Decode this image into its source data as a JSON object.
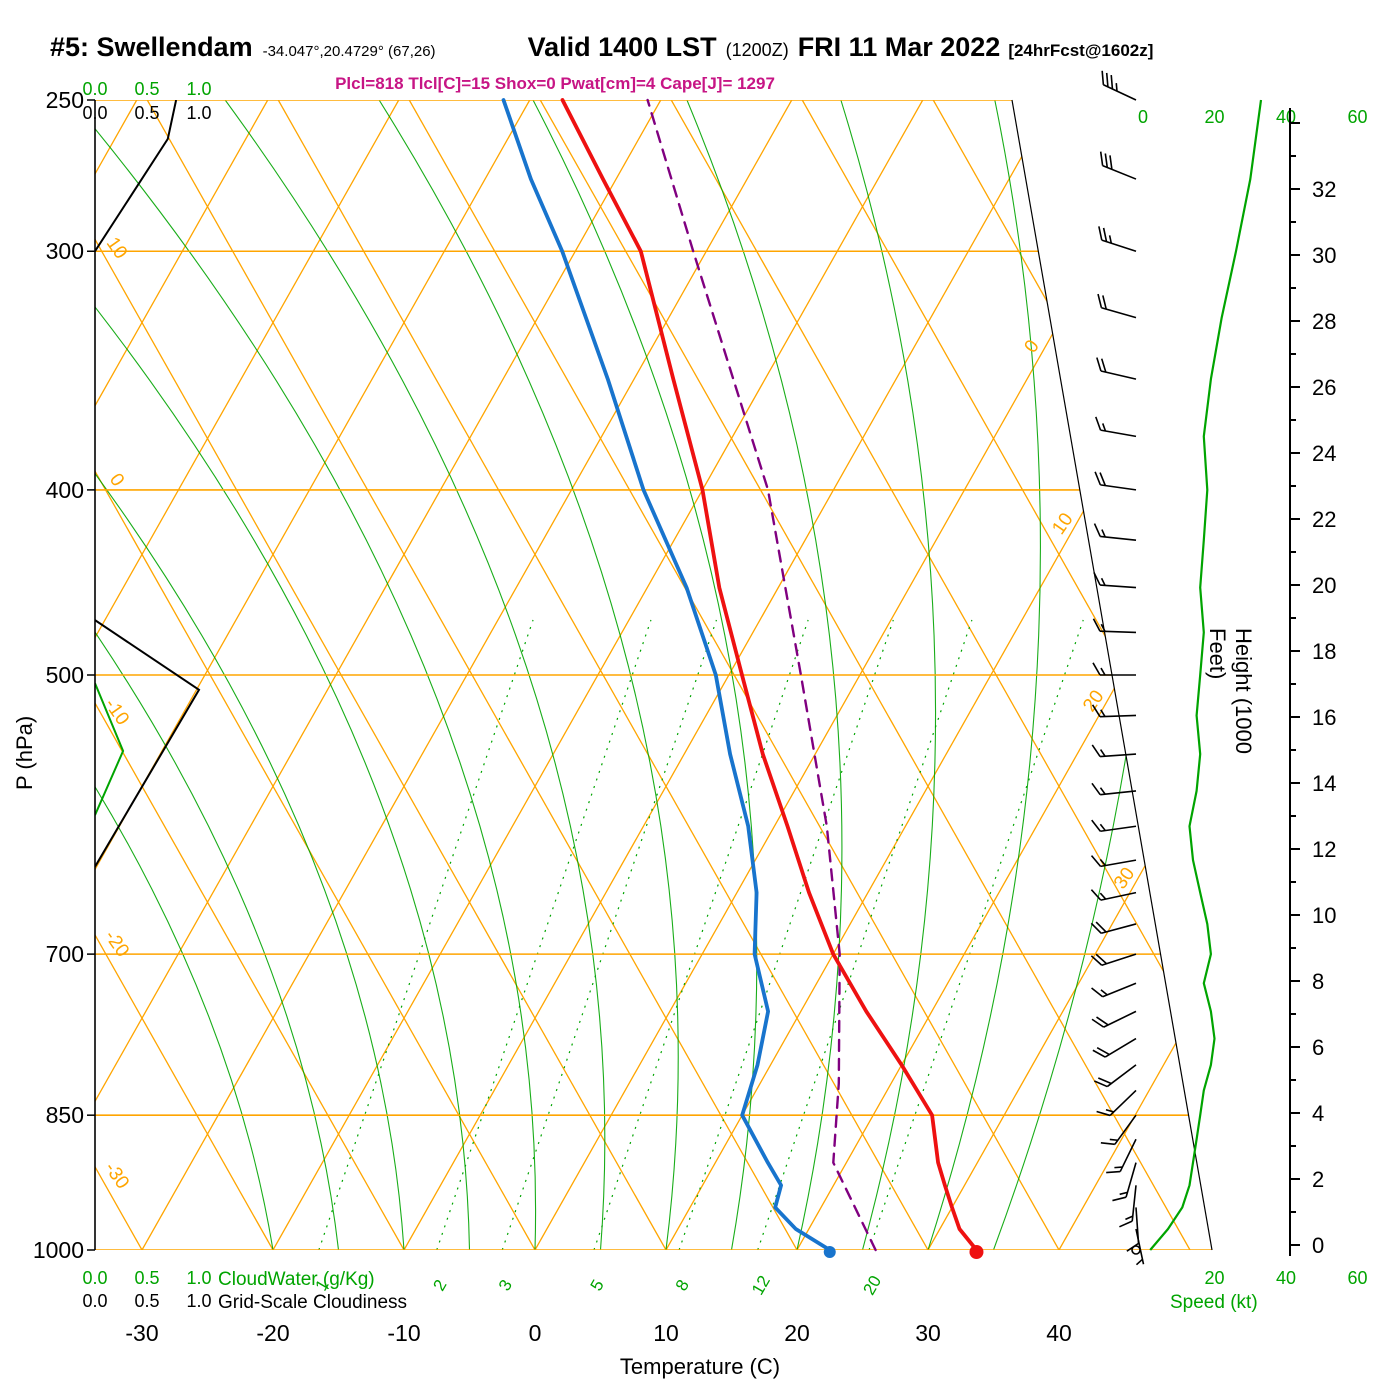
{
  "title": {
    "station": "#5: Swellendam",
    "coords": "-34.047°,20.4729° (67,26)",
    "valid": "Valid 1400 LST",
    "valid_z": "(1200Z)",
    "valid_date": "FRI 11 Mar 2022",
    "fcst": "[24hrFcst@1602z]"
  },
  "indices": {
    "text": "Plcl=818 Tlcl[C]=15 Shox=0 Pwat[cm]=4 Cape[J]= 1297",
    "plcl_hpa": 818,
    "tlcl_c": 15,
    "showalter": 0,
    "pwat_cm": 4,
    "cape_j": 1297
  },
  "axes": {
    "pressure_label": "P (hPa)",
    "pressure_ticks": [
      250,
      300,
      400,
      500,
      700,
      850,
      1000
    ],
    "temp_label": "Temperature (C)",
    "temp_ticks": [
      -30,
      -20,
      -10,
      0,
      10,
      20,
      30,
      40
    ],
    "height_label": "Height (1000 Feet)",
    "height_ticks": [
      0,
      2,
      4,
      6,
      8,
      10,
      12,
      14,
      16,
      18,
      20,
      22,
      24,
      26,
      28,
      30,
      32
    ],
    "cloudwater_label": "CloudWater (g/Kg)",
    "cloudiness_label": "Grid-Scale Cloudiness",
    "cloud_scale_ticks": [
      "0.0",
      "0.5",
      "1.0"
    ],
    "speed_label": "Speed (kt)",
    "speed_ticks_top": [
      0,
      20,
      40,
      60
    ],
    "speed_ticks_bottom": [
      20,
      40,
      60
    ]
  },
  "colors": {
    "grid_orange": "#FFA500",
    "green": "#00A400",
    "red": "#EE1111",
    "blue": "#1874CD",
    "purple": "#800080",
    "magenta": "#C71585",
    "black": "#000000"
  },
  "chart_data": {
    "type": "skewt-logp",
    "pressure_range_hpa": [
      1000,
      250
    ],
    "temp_axis_range_c": [
      -35,
      45
    ],
    "grid": {
      "isotherms": {
        "min": -80,
        "max": 40,
        "step": 10
      },
      "dry_adiabats": {
        "min": -30,
        "max": 80,
        "step": 10
      },
      "dry_adiabat_labels": [
        10,
        0,
        -10,
        -20,
        -30
      ],
      "isotherm_right_labels": [
        0,
        10,
        20,
        30
      ],
      "moist_adiabats": [
        -20,
        -15,
        -10,
        -5,
        0,
        5,
        10,
        15,
        20,
        25,
        30,
        35
      ],
      "mixing_ratio": [
        {
          "w": 1,
          "td": -16.5
        },
        {
          "w": 2,
          "td": -7.5
        },
        {
          "w": 3,
          "td": -2.5
        },
        {
          "w": 5,
          "td": 4.5
        },
        {
          "w": 8,
          "td": 11
        },
        {
          "w": 12,
          "td": 17
        },
        {
          "w": 20,
          "td": 25.5
        }
      ]
    },
    "sounding": {
      "pressure_hpa": [
        1000,
        975,
        950,
        925,
        900,
        850,
        800,
        750,
        700,
        650,
        600,
        550,
        500,
        450,
        400,
        350,
        300,
        275,
        250
      ],
      "temperature_c": [
        33.7,
        31.5,
        30.0,
        28.5,
        27.0,
        24.5,
        20.0,
        15.0,
        10.0,
        5.5,
        1.0,
        -4.0,
        -9.0,
        -14.5,
        -20.0,
        -27.0,
        -35.0,
        -41.0,
        -47.5
      ],
      "dewpoint_c": [
        22.5,
        19.0,
        16.5,
        16.0,
        14.0,
        10.0,
        9.0,
        7.5,
        4.0,
        1.5,
        -2.0,
        -6.5,
        -11.0,
        -17.0,
        -24.5,
        -32.0,
        -41.0,
        -46.5,
        -52.0
      ]
    },
    "parcel": {
      "pressure_hpa": [
        1000,
        900,
        818,
        700,
        600,
        500,
        400,
        300,
        250
      ],
      "temperature_c": [
        26.0,
        19.0,
        16.0,
        10.5,
        4.0,
        -4.5,
        -15.0,
        -31.0,
        -41.0
      ]
    },
    "wind": [
      {
        "p": 1000,
        "dir": 160,
        "kt": 2
      },
      {
        "p": 975,
        "dir": 168,
        "kt": 7
      },
      {
        "p": 950,
        "dir": 176,
        "kt": 11
      },
      {
        "p": 925,
        "dir": 186,
        "kt": 13
      },
      {
        "p": 900,
        "dir": 196,
        "kt": 14
      },
      {
        "p": 875,
        "dir": 206,
        "kt": 15
      },
      {
        "p": 850,
        "dir": 216,
        "kt": 16
      },
      {
        "p": 825,
        "dir": 226,
        "kt": 17
      },
      {
        "p": 800,
        "dir": 233,
        "kt": 19
      },
      {
        "p": 775,
        "dir": 239,
        "kt": 20
      },
      {
        "p": 750,
        "dir": 244,
        "kt": 19
      },
      {
        "p": 725,
        "dir": 248,
        "kt": 17
      },
      {
        "p": 700,
        "dir": 252,
        "kt": 19
      },
      {
        "p": 675,
        "dir": 255,
        "kt": 18
      },
      {
        "p": 650,
        "dir": 258,
        "kt": 16
      },
      {
        "p": 625,
        "dir": 260,
        "kt": 14
      },
      {
        "p": 600,
        "dir": 262,
        "kt": 13
      },
      {
        "p": 575,
        "dir": 264,
        "kt": 15
      },
      {
        "p": 550,
        "dir": 266,
        "kt": 16
      },
      {
        "p": 525,
        "dir": 268,
        "kt": 15
      },
      {
        "p": 500,
        "dir": 270,
        "kt": 16
      },
      {
        "p": 475,
        "dir": 272,
        "kt": 17
      },
      {
        "p": 450,
        "dir": 274,
        "kt": 16
      },
      {
        "p": 425,
        "dir": 276,
        "kt": 17
      },
      {
        "p": 400,
        "dir": 278,
        "kt": 18
      },
      {
        "p": 375,
        "dir": 280,
        "kt": 17
      },
      {
        "p": 350,
        "dir": 283,
        "kt": 19
      },
      {
        "p": 325,
        "dir": 286,
        "kt": 22
      },
      {
        "p": 300,
        "dir": 288,
        "kt": 26
      },
      {
        "p": 275,
        "dir": 292,
        "kt": 30
      },
      {
        "p": 250,
        "dir": 295,
        "kt": 33
      }
    ],
    "cloudiness": [
      [
        {
          "p": 300,
          "v": 0.0
        },
        {
          "p": 262,
          "v": 0.7
        },
        {
          "p": 250,
          "v": 0.78
        }
      ],
      [
        {
          "p": 468,
          "v": 0.0
        },
        {
          "p": 509,
          "v": 1.0
        },
        {
          "p": 630,
          "v": 0.0
        }
      ]
    ],
    "cloud_water": [
      [
        {
          "p": 505,
          "v": 0.0
        },
        {
          "p": 548,
          "v": 0.27
        },
        {
          "p": 592,
          "v": 0.0
        }
      ]
    ]
  }
}
